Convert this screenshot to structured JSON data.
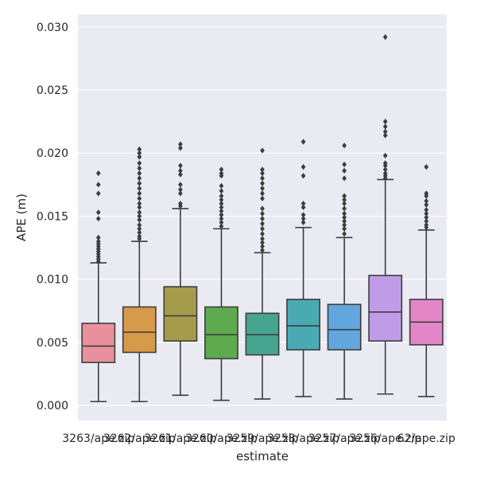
{
  "chart_data": {
    "type": "box",
    "xlabel": "estimate",
    "ylabel": "APE (m)",
    "ylim": [
      -0.0012,
      0.031
    ],
    "yticks": [
      0.0,
      0.005,
      0.01,
      0.015,
      0.02,
      0.025,
      0.03
    ],
    "ytick_labels": [
      "0.000",
      "0.005",
      "0.010",
      "0.015",
      "0.020",
      "0.025",
      "0.030"
    ],
    "grid": true,
    "background": "#eaeaf2",
    "categories": [
      "3263/ape.zip",
      "3262/ape.zip",
      "3261/ape.zip",
      "3260/ape.zip",
      "3259/ape.zip",
      "3258/ape.zip",
      "3257/ape.zip",
      "3256/ape.zip",
      "62/ape.zip"
    ],
    "colors": [
      "#e8919c",
      "#d69a48",
      "#a59c4b",
      "#5fa94f",
      "#45a590",
      "#4aaab4",
      "#62a6dd",
      "#c09ce8",
      "#e386c7"
    ],
    "boxes": [
      {
        "whislo": 0.0003,
        "q1": 0.0034,
        "med": 0.0047,
        "q3": 0.0065,
        "whishi": 0.0113,
        "fliers": [
          0.0114,
          0.0116,
          0.0118,
          0.012,
          0.0122,
          0.0124,
          0.0126,
          0.0128,
          0.013,
          0.0133,
          0.0148,
          0.0153,
          0.0168,
          0.0175,
          0.0184
        ]
      },
      {
        "whislo": 0.0003,
        "q1": 0.0042,
        "med": 0.0058,
        "q3": 0.0078,
        "whishi": 0.013,
        "fliers": [
          0.0132,
          0.0134,
          0.0137,
          0.014,
          0.0143,
          0.0147,
          0.015,
          0.0153,
          0.0157,
          0.016,
          0.0164,
          0.0168,
          0.0172,
          0.0176,
          0.018,
          0.0184,
          0.0188,
          0.0192,
          0.0197,
          0.02,
          0.0203
        ]
      },
      {
        "whislo": 0.0008,
        "q1": 0.0051,
        "med": 0.0071,
        "q3": 0.0094,
        "whishi": 0.0156,
        "fliers": [
          0.0158,
          0.016,
          0.0168,
          0.0171,
          0.0175,
          0.0183,
          0.0186,
          0.019,
          0.0204,
          0.0207
        ]
      },
      {
        "whislo": 0.0004,
        "q1": 0.0037,
        "med": 0.0056,
        "q3": 0.0078,
        "whishi": 0.014,
        "fliers": [
          0.0142,
          0.0145,
          0.0148,
          0.0151,
          0.0154,
          0.0157,
          0.016,
          0.0163,
          0.0166,
          0.017,
          0.0174,
          0.0182,
          0.0184,
          0.0187
        ]
      },
      {
        "whislo": 0.0005,
        "q1": 0.004,
        "med": 0.0056,
        "q3": 0.0073,
        "whishi": 0.0121,
        "fliers": [
          0.0123,
          0.0126,
          0.0129,
          0.0132,
          0.0136,
          0.014,
          0.0144,
          0.0148,
          0.0152,
          0.0156,
          0.0164,
          0.0168,
          0.0172,
          0.0176,
          0.018,
          0.0184,
          0.0187,
          0.0202
        ]
      },
      {
        "whislo": 0.0007,
        "q1": 0.0044,
        "med": 0.0063,
        "q3": 0.0084,
        "whishi": 0.0141,
        "fliers": [
          0.0145,
          0.0148,
          0.0151,
          0.0157,
          0.016,
          0.0182,
          0.0189,
          0.0209
        ]
      },
      {
        "whislo": 0.0005,
        "q1": 0.0044,
        "med": 0.006,
        "q3": 0.008,
        "whishi": 0.0133,
        "fliers": [
          0.0136,
          0.014,
          0.0143,
          0.0146,
          0.0149,
          0.0152,
          0.0156,
          0.016,
          0.0163,
          0.0166,
          0.018,
          0.0186,
          0.0191,
          0.0206
        ]
      },
      {
        "whislo": 0.0009,
        "q1": 0.0051,
        "med": 0.0074,
        "q3": 0.0103,
        "whishi": 0.0179,
        "fliers": [
          0.018,
          0.0182,
          0.0184,
          0.0187,
          0.019,
          0.0192,
          0.0198,
          0.0214,
          0.0217,
          0.0221,
          0.0225,
          0.0292
        ]
      },
      {
        "whislo": 0.0007,
        "q1": 0.0048,
        "med": 0.0066,
        "q3": 0.0084,
        "whishi": 0.0139,
        "fliers": [
          0.0141,
          0.0143,
          0.0146,
          0.0149,
          0.0152,
          0.0155,
          0.0159,
          0.0162,
          0.0166,
          0.0168,
          0.0189
        ]
      }
    ]
  }
}
